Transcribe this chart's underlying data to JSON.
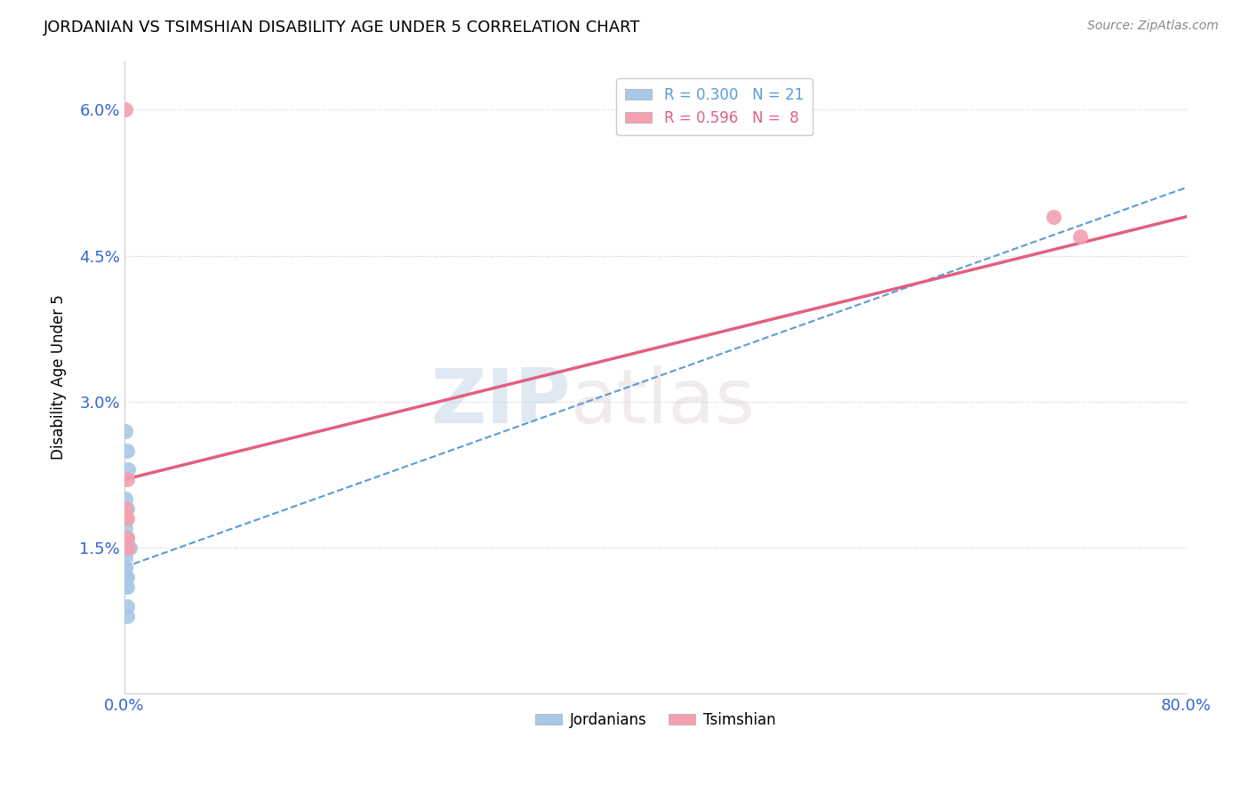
{
  "title": "JORDANIAN VS TSIMSHIAN DISABILITY AGE UNDER 5 CORRELATION CHART",
  "source": "Source: ZipAtlas.com",
  "ylabel": "Disability Age Under 5",
  "xlim": [
    0.0,
    0.8
  ],
  "ylim": [
    0.0,
    0.065
  ],
  "xticks": [
    0.0,
    0.2,
    0.4,
    0.6,
    0.8
  ],
  "xtick_labels": [
    "0.0%",
    "",
    "",
    "",
    "80.0%"
  ],
  "yticks": [
    0.0,
    0.015,
    0.03,
    0.045,
    0.06
  ],
  "ytick_labels": [
    "",
    "1.5%",
    "3.0%",
    "4.5%",
    "6.0%"
  ],
  "jordanian_R": 0.3,
  "jordanian_N": 21,
  "tsimshian_R": 0.596,
  "tsimshian_N": 8,
  "jordanian_color": "#a8c8e8",
  "tsimshian_color": "#f4a0b0",
  "jordanian_line_color": "#5b9bd5",
  "tsimshian_line_color": "#e06080",
  "watermark_zip": "ZIP",
  "watermark_atlas": "atlas",
  "jordanian_x": [
    0.001,
    0.002,
    0.003,
    0.001,
    0.002,
    0.001,
    0.001,
    0.002,
    0.002,
    0.001,
    0.003,
    0.001,
    0.001,
    0.001,
    0.002,
    0.001,
    0.001,
    0.002,
    0.002,
    0.004,
    0.002
  ],
  "jordanian_y": [
    0.027,
    0.025,
    0.023,
    0.02,
    0.019,
    0.018,
    0.017,
    0.016,
    0.016,
    0.015,
    0.015,
    0.014,
    0.013,
    0.013,
    0.012,
    0.012,
    0.011,
    0.011,
    0.009,
    0.015,
    0.008
  ],
  "tsimshian_x": [
    0.001,
    0.002,
    0.001,
    0.002,
    0.002,
    0.003,
    0.7,
    0.72
  ],
  "tsimshian_y": [
    0.06,
    0.022,
    0.019,
    0.018,
    0.016,
    0.015,
    0.049,
    0.047
  ],
  "jordanian_line_x0": 0.0,
  "jordanian_line_y0": 0.013,
  "jordanian_line_x1": 0.8,
  "jordanian_line_y1": 0.052,
  "tsimshian_line_x0": 0.0,
  "tsimshian_line_y0": 0.022,
  "tsimshian_line_x1": 0.8,
  "tsimshian_line_y1": 0.049
}
